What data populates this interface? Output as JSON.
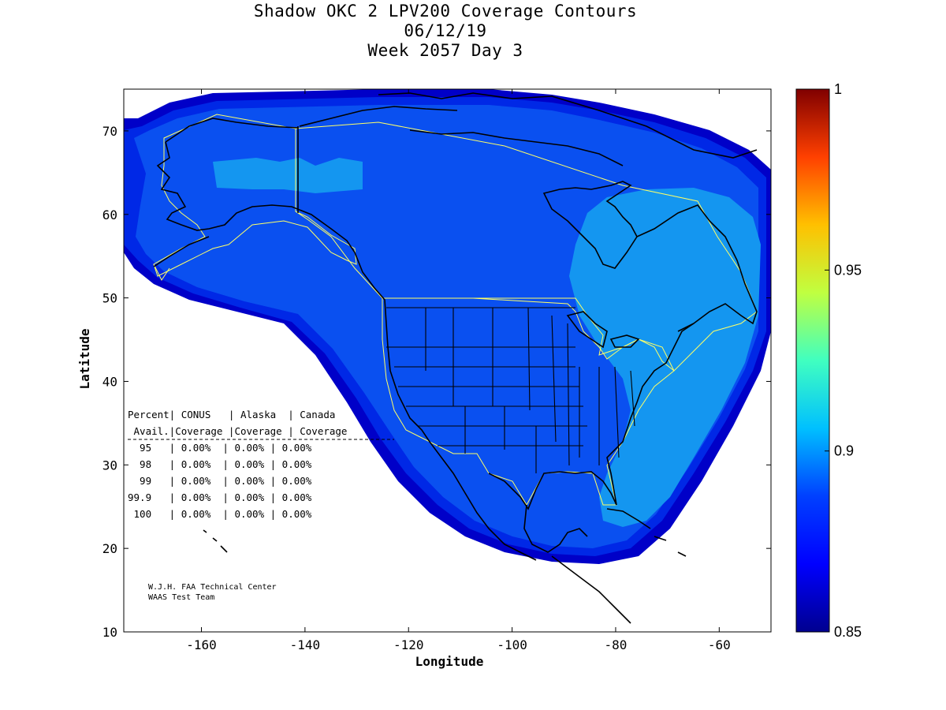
{
  "title": {
    "line1": "Shadow OKC 2 LPV200 Coverage Contours",
    "line2": "06/12/19",
    "line3": "Week 2057 Day 3"
  },
  "axes": {
    "x_label": "Longitude",
    "y_label": "Latitude",
    "x_ticks": [
      "-160",
      "-140",
      "-120",
      "-100",
      "-80",
      "-60"
    ],
    "y_ticks": [
      "10",
      "20",
      "30",
      "40",
      "50",
      "60",
      "70"
    ],
    "x_range": [
      -175,
      -50
    ],
    "y_range": [
      10,
      75
    ]
  },
  "colorbar": {
    "min": 0.85,
    "max": 1,
    "ticks": [
      "0.85",
      "0.9",
      "0.95",
      "1"
    ],
    "colormap": "jet",
    "colors": [
      "#00008f",
      "#0000ff",
      "#0080ff",
      "#00ffff",
      "#80ff80",
      "#ffff00",
      "#ff8000",
      "#ff0000",
      "#800000"
    ]
  },
  "contour_colors": {
    "outer": "#0000c8",
    "mid": "#0028e6",
    "main": "#0a50f0",
    "light": "#1496f0",
    "boundary": "#ffff66",
    "coast": "#000000"
  },
  "availability_table": {
    "header1": "Percent| CONUS   | Alaska  | Canada",
    "header2": " Avail.|Coverage |Coverage | Coverage",
    "rows": [
      "  95   | 0.00%  | 0.00% | 0.00%",
      "  98   | 0.00%  | 0.00% | 0.00%",
      "  99   | 0.00%  | 0.00% | 0.00%",
      "99.9   | 0.00%  | 0.00% | 0.00%",
      " 100   | 0.00%  | 0.00% | 0.00%"
    ]
  },
  "credit": {
    "line1": "W.J.H. FAA Technical Center",
    "line2": "WAAS Test Team"
  }
}
